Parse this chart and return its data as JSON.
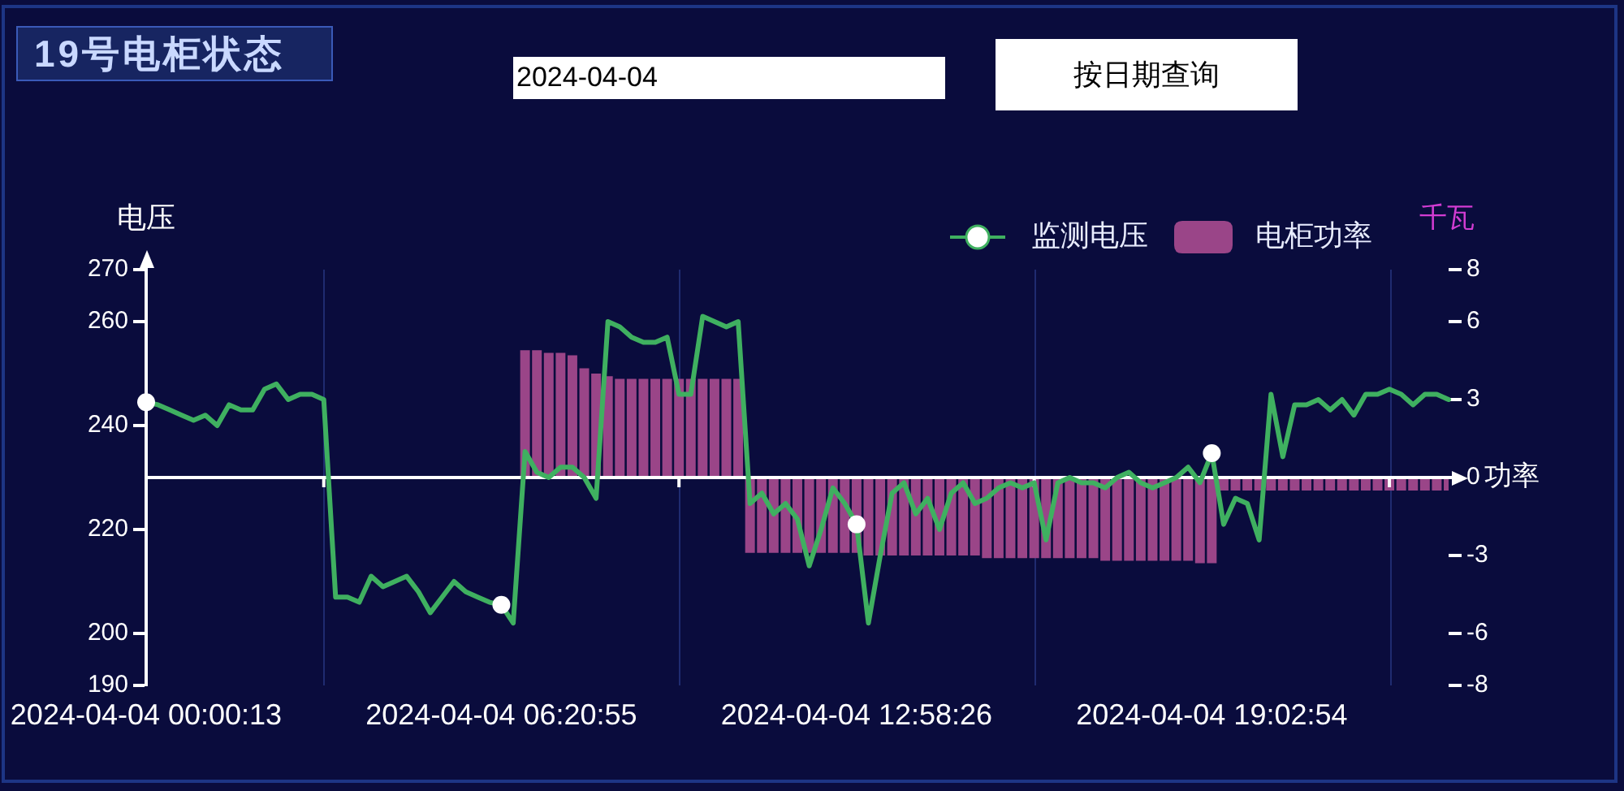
{
  "chart_data": {
    "type": "line",
    "title": "19号电柜状态",
    "annotations": [
      "2024-04-04",
      "按日期查询"
    ],
    "xlabel": "功率",
    "ylabel": "电压",
    "y2label": "千瓦",
    "categories": [
      "2024-04-04 00:00:13",
      null,
      null,
      null,
      null,
      null,
      null,
      null,
      null,
      null,
      null,
      null,
      null,
      null,
      null,
      null,
      null,
      null,
      null,
      null,
      null,
      null,
      null,
      null,
      null,
      null,
      null,
      null,
      null,
      null,
      "2024-04-04 06:20:55",
      null,
      null,
      null,
      null,
      null,
      null,
      null,
      null,
      null,
      null,
      null,
      null,
      null,
      null,
      null,
      null,
      null,
      null,
      null,
      null,
      null,
      null,
      null,
      null,
      null,
      null,
      null,
      null,
      null,
      "2024-04-04 12:58:26",
      null,
      null,
      null,
      null,
      null,
      null,
      null,
      null,
      null,
      null,
      null,
      null,
      null,
      null,
      null,
      null,
      null,
      null,
      null,
      null,
      null,
      null,
      null,
      null,
      null,
      null,
      null,
      null,
      null,
      "2024-04-04 19:02:54",
      null,
      null,
      null,
      null,
      null,
      null,
      null,
      null,
      null,
      null,
      null,
      null,
      null,
      null,
      null,
      null,
      null,
      null,
      null,
      null
    ],
    "series": [
      {
        "name": "监测电压",
        "type": "line",
        "color": "#3fb060",
        "values": [
          244.5,
          244,
          243,
          242,
          241,
          242,
          240,
          244,
          243,
          243,
          247,
          248,
          245,
          246,
          246,
          245,
          207,
          207,
          206,
          211,
          209,
          210,
          211,
          208,
          204,
          207,
          210,
          208,
          207,
          206,
          205.5,
          202,
          235,
          231,
          230,
          232,
          232,
          230,
          226,
          260,
          259,
          257,
          256,
          256,
          257,
          246,
          246,
          261,
          260,
          259,
          260,
          225,
          227,
          223,
          225,
          222,
          213,
          220,
          228,
          225,
          221,
          202,
          215,
          227,
          229,
          223,
          226,
          220,
          227,
          229,
          225,
          226,
          228,
          229,
          228,
          229,
          218,
          229,
          230,
          229,
          229,
          228,
          230,
          231,
          229,
          228,
          229,
          230,
          232,
          229,
          234.7,
          221,
          226,
          225,
          218,
          246,
          234,
          244,
          244,
          245,
          243,
          245,
          242,
          246,
          246,
          247,
          246,
          244,
          246,
          246,
          245
        ]
      },
      {
        "type": "scatter",
        "marker": "circle",
        "color": "#ffffff",
        "values": [
          244.5,
          null,
          null,
          null,
          null,
          null,
          null,
          null,
          null,
          null,
          null,
          null,
          null,
          null,
          null,
          null,
          null,
          null,
          null,
          null,
          null,
          null,
          null,
          null,
          null,
          null,
          null,
          null,
          null,
          null,
          205.5,
          null,
          null,
          null,
          null,
          null,
          null,
          null,
          null,
          null,
          null,
          null,
          null,
          null,
          null,
          null,
          null,
          null,
          null,
          null,
          null,
          null,
          null,
          null,
          null,
          null,
          null,
          null,
          null,
          null,
          221,
          null,
          null,
          null,
          null,
          null,
          null,
          null,
          null,
          null,
          null,
          null,
          null,
          null,
          null,
          null,
          null,
          null,
          null,
          null,
          null,
          null,
          null,
          null,
          null,
          null,
          null,
          null,
          null,
          null,
          234.7,
          null,
          null,
          null,
          null,
          null,
          null,
          null,
          null,
          null,
          null,
          null,
          null,
          null,
          null,
          null,
          null,
          null,
          null,
          null,
          null
        ]
      },
      {
        "name": "电柜功率",
        "type": "bar",
        "axis": "y2",
        "color": "#9a4588",
        "values": [
          0,
          0,
          0,
          0,
          0,
          0,
          0,
          0,
          0,
          0,
          0,
          0,
          0,
          0,
          0,
          0,
          0,
          0,
          0,
          0,
          0,
          0,
          0,
          0,
          0,
          0,
          0,
          0,
          0,
          0,
          0,
          0,
          4.9,
          4.9,
          4.8,
          4.8,
          4.7,
          4.2,
          4.0,
          3.9,
          3.8,
          3.8,
          3.8,
          3.8,
          3.8,
          3.8,
          3.8,
          3.8,
          3.8,
          3.8,
          3.8,
          -2.9,
          -2.9,
          -2.9,
          -2.9,
          -2.9,
          -2.9,
          -2.9,
          -2.9,
          -2.9,
          -2.9,
          -3.0,
          -3.0,
          -3.0,
          -3.0,
          -3.0,
          -3.0,
          -3.0,
          -3.0,
          -3.0,
          -3.0,
          -3.1,
          -3.1,
          -3.1,
          -3.1,
          -3.1,
          -3.1,
          -3.1,
          -3.1,
          -3.1,
          -3.1,
          -3.2,
          -3.2,
          -3.2,
          -3.2,
          -3.2,
          -3.2,
          -3.2,
          -3.2,
          -3.3,
          -3.3,
          -0.5,
          -0.5,
          -0.5,
          -0.5,
          -0.5,
          -0.5,
          -0.5,
          -0.5,
          -0.5,
          -0.5,
          -0.5,
          -0.5,
          -0.5,
          -0.5,
          -0.5,
          -0.5,
          -0.5,
          -0.5,
          -0.5,
          -0.5
        ]
      }
    ],
    "ylim": [
      190,
      270
    ],
    "yticks": [
      190,
      200,
      220,
      240,
      260,
      270
    ],
    "y2lim": [
      -8,
      8
    ],
    "y2ticks": [
      -8,
      -6,
      -3,
      0,
      3,
      6,
      8
    ],
    "grid": "x",
    "legend": "top right"
  }
}
